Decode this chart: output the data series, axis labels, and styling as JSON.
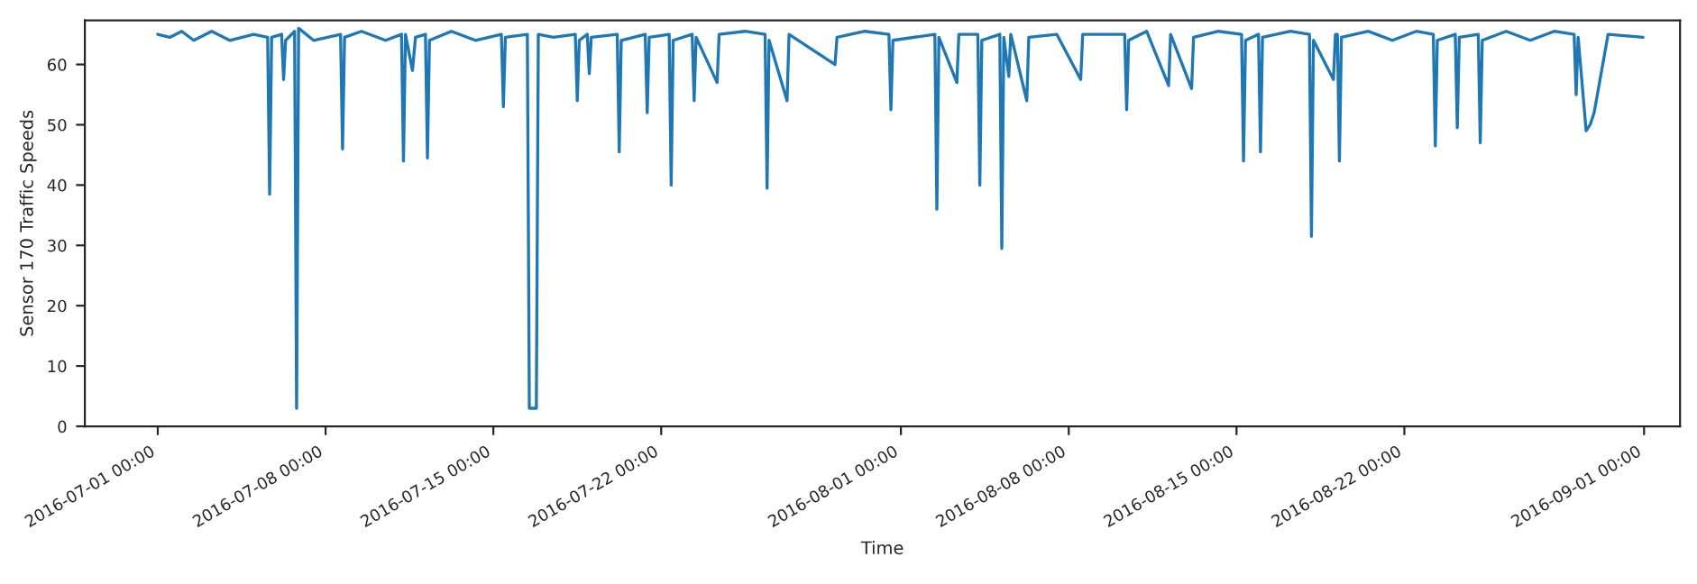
{
  "chart_data": {
    "type": "line",
    "xlabel": "Time",
    "ylabel": "Sensor 170 Traffic Speeds",
    "xlim": [
      "2016-06-27T23:00",
      "2016-09-02T12:00"
    ],
    "xticks": [
      {
        "value": "2016-07-01",
        "label": "2016-07-01 00:00"
      },
      {
        "value": "2016-07-08",
        "label": "2016-07-08 00:00"
      },
      {
        "value": "2016-07-15",
        "label": "2016-07-15 00:00"
      },
      {
        "value": "2016-07-22",
        "label": "2016-07-22 00:00"
      },
      {
        "value": "2016-08-01",
        "label": "2016-08-01 00:00"
      },
      {
        "value": "2016-08-08",
        "label": "2016-08-08 00:00"
      },
      {
        "value": "2016-08-15",
        "label": "2016-08-15 00:00"
      },
      {
        "value": "2016-08-22",
        "label": "2016-08-22 00:00"
      },
      {
        "value": "2016-09-01",
        "label": "2016-09-01 00:00"
      }
    ],
    "ylim": [
      0,
      67.3
    ],
    "yticks": [
      0,
      10,
      20,
      30,
      40,
      50,
      60
    ],
    "series": [
      {
        "color": "#1f77b4",
        "x": [
          "2016-07-01T00:00",
          "2016-07-01T12:00",
          "2016-07-02T00:00",
          "2016-07-02T12:00",
          "2016-07-03T06:00",
          "2016-07-04T00:00",
          "2016-07-05T00:00",
          "2016-07-05T14:00",
          "2016-07-05T16:00",
          "2016-07-05T18:00",
          "2016-07-06T04:00",
          "2016-07-06T06:00",
          "2016-07-06T08:00",
          "2016-07-06T17:00",
          "2016-07-06T19:00",
          "2016-07-06T21:00",
          "2016-07-07T12:00",
          "2016-07-08T15:00",
          "2016-07-08T17:00",
          "2016-07-08T19:00",
          "2016-07-09T12:00",
          "2016-07-10T12:00",
          "2016-07-11T04:00",
          "2016-07-11T06:00",
          "2016-07-11T08:00",
          "2016-07-11T15:00",
          "2016-07-11T18:00",
          "2016-07-12T04:00",
          "2016-07-12T06:00",
          "2016-07-12T08:00",
          "2016-07-13T06:00",
          "2016-07-14T06:00",
          "2016-07-15T08:00",
          "2016-07-15T10:00",
          "2016-07-15T12:00",
          "2016-07-16T10:00",
          "2016-07-16T12:00",
          "2016-07-16T19:00",
          "2016-07-16T21:00",
          "2016-07-17T12:00",
          "2016-07-18T10:00",
          "2016-07-18T12:00",
          "2016-07-18T14:00",
          "2016-07-18T22:00",
          "2016-07-19T00:00",
          "2016-07-19T02:00",
          "2016-07-20T04:00",
          "2016-07-20T06:00",
          "2016-07-20T08:00",
          "2016-07-21T08:00",
          "2016-07-21T10:00",
          "2016-07-21T12:00",
          "2016-07-22T08:00",
          "2016-07-22T10:00",
          "2016-07-22T12:00",
          "2016-07-23T07:00",
          "2016-07-23T09:00",
          "2016-07-23T11:00",
          "2016-07-24T08:00",
          "2016-07-24T10:00",
          "2016-07-25T12:00",
          "2016-07-26T08:00",
          "2016-07-26T10:00",
          "2016-07-26T12:00",
          "2016-07-27T06:00",
          "2016-07-27T08:00",
          "2016-07-29T06:00",
          "2016-07-29T08:00",
          "2016-07-30T12:00",
          "2016-07-31T12:00",
          "2016-07-31T14:00",
          "2016-07-31T16:00",
          "2016-08-02T10:00",
          "2016-08-02T12:00",
          "2016-08-02T14:00",
          "2016-08-03T08:00",
          "2016-08-03T10:00",
          "2016-08-04T05:00",
          "2016-08-04T07:00",
          "2016-08-04T09:00",
          "2016-08-05T03:00",
          "2016-08-05T05:00",
          "2016-08-05T07:00",
          "2016-08-05T12:00",
          "2016-08-05T14:00",
          "2016-08-06T06:00",
          "2016-08-06T08:00",
          "2016-08-07T12:00",
          "2016-08-08T12:00",
          "2016-08-08T14:00",
          "2016-08-10T08:00",
          "2016-08-10T10:00",
          "2016-08-10T12:00",
          "2016-08-11T06:00",
          "2016-08-12T04:00",
          "2016-08-12T06:00",
          "2016-08-13T03:00",
          "2016-08-13T05:00",
          "2016-08-14T06:00",
          "2016-08-15T05:00",
          "2016-08-15T07:00",
          "2016-08-15T09:00",
          "2016-08-15T22:00",
          "2016-08-16T00:00",
          "2016-08-16T02:00",
          "2016-08-17T06:00",
          "2016-08-18T01:00",
          "2016-08-18T03:00",
          "2016-08-18T05:00",
          "2016-08-19T01:00",
          "2016-08-19T03:00",
          "2016-08-19T05:00",
          "2016-08-19T07:00",
          "2016-08-19T09:00",
          "2016-08-20T12:00",
          "2016-08-21T12:00",
          "2016-08-22T12:00",
          "2016-08-23T05:00",
          "2016-08-23T07:00",
          "2016-08-23T09:00",
          "2016-08-24T03:00",
          "2016-08-24T05:00",
          "2016-08-24T07:00",
          "2016-08-25T02:00",
          "2016-08-25T04:00",
          "2016-08-25T06:00",
          "2016-08-26T06:00",
          "2016-08-27T06:00",
          "2016-08-28T06:00",
          "2016-08-29T02:00",
          "2016-08-29T04:00",
          "2016-08-29T06:00",
          "2016-08-29T14:00",
          "2016-08-29T18:00",
          "2016-08-29T22:00",
          "2016-08-30T12:00",
          "2016-08-31T23:00"
        ],
        "values": [
          65,
          64.5,
          65.5,
          64,
          65.5,
          64,
          65,
          64.5,
          38.5,
          64.5,
          65,
          57.5,
          64,
          65.5,
          3,
          66,
          64,
          65,
          46,
          64.5,
          65.5,
          64,
          65,
          44,
          65,
          59,
          64.5,
          65,
          44.5,
          64,
          65.5,
          64,
          65,
          53,
          64.5,
          65,
          3,
          3,
          65,
          64.5,
          65,
          54,
          64,
          65,
          58.5,
          64.5,
          65,
          45.5,
          64,
          65,
          52,
          64.5,
          65,
          40,
          64,
          65,
          54,
          64.5,
          57,
          65,
          65.5,
          65,
          39.5,
          64,
          54,
          65,
          60,
          64.5,
          65.5,
          65,
          52.5,
          64,
          65,
          36,
          64.5,
          57,
          65,
          65,
          40,
          64,
          65,
          29.5,
          64.5,
          58,
          65,
          54,
          64.5,
          65,
          57.5,
          65,
          65,
          52.5,
          64,
          65.5,
          56.5,
          65,
          56,
          64.5,
          65.5,
          65,
          44,
          64,
          65,
          45.5,
          64.5,
          65.5,
          65,
          31.5,
          64,
          57.5,
          65,
          65,
          44,
          64.5,
          65.5,
          64,
          65.5,
          65,
          46.5,
          64,
          65,
          49.5,
          64.5,
          65,
          47,
          64,
          65.5,
          64,
          65.5,
          65,
          55,
          64.5,
          49,
          50,
          52,
          65,
          64.5
        ]
      }
    ]
  }
}
